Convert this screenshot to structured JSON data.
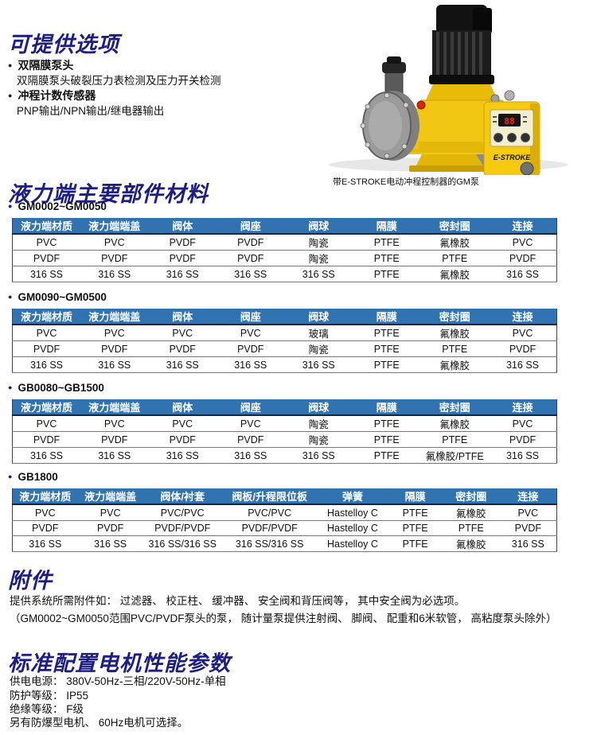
{
  "options": {
    "title": "可提供选项",
    "items": [
      {
        "label": "双隔膜泵头",
        "sub": "双隔膜泵头破裂压力表检测及压力开关检测"
      },
      {
        "label": "冲程计数传感器",
        "sub": "PNP输出/NPN输出/继电器输出"
      }
    ]
  },
  "pump": {
    "caption": "带E-STROKE电动冲程控制器的GM泵",
    "controller_label": "E-STROKE"
  },
  "materials": {
    "title": "液力端主要部件材料",
    "tables": [
      {
        "model": "GM0002~GM0050",
        "headers": [
          "液力端材质",
          "液力端端盖",
          "阀体",
          "阀座",
          "阀球",
          "隔膜",
          "密封圈",
          "连接"
        ],
        "rows": [
          [
            "PVC",
            "PVC",
            "PVDF",
            "PVDF",
            "陶瓷",
            "PTFE",
            "氟橡胶",
            "PVC"
          ],
          [
            "PVDF",
            "PVDF",
            "PVDF",
            "PVDF",
            "陶瓷",
            "PTFE",
            "PTFE",
            "PVDF"
          ],
          [
            "316 SS",
            "316 SS",
            "316 SS",
            "316 SS",
            "316 SS",
            "PTFE",
            "氟橡胶",
            "316 SS"
          ]
        ]
      },
      {
        "model": "GM0090~GM0500",
        "headers": [
          "液力端材质",
          "液力端端盖",
          "阀体",
          "阀座",
          "阀球",
          "隔膜",
          "密封圈",
          "连接"
        ],
        "rows": [
          [
            "PVC",
            "PVC",
            "PVC",
            "PVC",
            "玻璃",
            "PTFE",
            "氟橡胶",
            "PVC"
          ],
          [
            "PVDF",
            "PVDF",
            "PVDF",
            "PVDF",
            "陶瓷",
            "PTFE",
            "PTFE",
            "PVDF"
          ],
          [
            "316 SS",
            "316 SS",
            "316 SS",
            "316 SS",
            "316 SS",
            "PTFE",
            "氟橡胶",
            "316 SS"
          ]
        ]
      },
      {
        "model": "GB0080~GB1500",
        "headers": [
          "液力端材质",
          "液力端端盖",
          "阀体",
          "阀座",
          "阀球",
          "隔膜",
          "密封圈",
          "连接"
        ],
        "rows": [
          [
            "PVC",
            "PVC",
            "PVC",
            "PVC",
            "陶瓷",
            "PTFE",
            "氟橡胶",
            "PVC"
          ],
          [
            "PVDF",
            "PVDF",
            "PVDF",
            "PVDF",
            "陶瓷",
            "PTFE",
            "PTFE",
            "PVDF"
          ],
          [
            "316 SS",
            "316 SS",
            "316 SS",
            "316 SS",
            "316 SS",
            "PTFE",
            "氟橡胶/PTFE",
            "316 SS"
          ]
        ]
      },
      {
        "model": "GB1800",
        "headers": [
          "液力端材质",
          "液力端端盖",
          "阀体/衬套",
          "阀板/升程限位板",
          "弹簧",
          "隔膜",
          "密封圈",
          "连接"
        ],
        "rows": [
          [
            "PVC",
            "PVC",
            "PVC/PVC",
            "PVC/PVC",
            "Hastelloy C",
            "PTFE",
            "氟橡胶",
            "PVC"
          ],
          [
            "PVDF",
            "PVDF",
            "PVDF/PVDF",
            "PVDF/PVDF",
            "Hastelloy C",
            "PTFE",
            "PTFE",
            "PVDF"
          ],
          [
            "316 SS",
            "316 SS",
            "316 SS/316 SS",
            "316 SS/316 SS",
            "Hastelloy C",
            "PTFE",
            "氟橡胶",
            "316 SS"
          ]
        ]
      }
    ]
  },
  "accessories": {
    "title": "附件",
    "line1": "提供系统所需附件如： 过滤器、 校正柱、 缓冲器、 安全阀和背压阀等， 其中安全阀为必选项。",
    "line2": "（GM0002~GM0050范围PVC/PVDF泵头的泵， 随计量泵提供注射阀、 脚阀、 配重和6米软管， 高粘度泵头除外）"
  },
  "motor_spec": {
    "title": "标准配置电机性能参数",
    "lines": [
      "供电电源：  380V-50Hz-三相/220V-50Hz-单相",
      "防护等级：  IP55",
      "绝缘等级：  F级",
      "另有防爆型电机、 60Hz电机可选择。"
    ]
  },
  "colors": {
    "title_navy": "#1e1e82",
    "table_header_bg": "#3173b1",
    "table_header_text": "#ffffff",
    "pump_yellow": "#f2c713",
    "led_red": "#ff2a00"
  }
}
